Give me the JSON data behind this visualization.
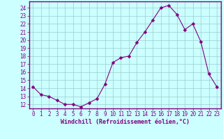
{
  "hours": [
    0,
    1,
    2,
    3,
    4,
    5,
    6,
    7,
    8,
    9,
    10,
    11,
    12,
    13,
    14,
    15,
    16,
    17,
    18,
    19,
    20,
    21,
    22,
    23
  ],
  "windchill": [
    14.2,
    13.2,
    13.0,
    12.5,
    12.0,
    12.0,
    11.7,
    12.2,
    12.7,
    14.5,
    17.2,
    17.8,
    18.0,
    19.7,
    21.0,
    22.5,
    24.0,
    24.3,
    23.2,
    21.3,
    22.0,
    19.8,
    15.8,
    14.2
  ],
  "line_color": "#800080",
  "marker_color": "#800080",
  "bg_color": "#ccffff",
  "plot_bg_color": "#ccffff",
  "grid_color": "#99cccc",
  "xlabel": "Windchill (Refroidissement éolien,°C)",
  "ylabel_ticks": [
    12,
    13,
    14,
    15,
    16,
    17,
    18,
    19,
    20,
    21,
    22,
    23,
    24
  ],
  "ylim": [
    11.5,
    24.8
  ],
  "xlim": [
    -0.5,
    23.5
  ],
  "xticks": [
    0,
    1,
    2,
    3,
    4,
    5,
    6,
    7,
    8,
    9,
    10,
    11,
    12,
    13,
    14,
    15,
    16,
    17,
    18,
    19,
    20,
    21,
    22,
    23
  ],
  "tick_fontsize": 5.5,
  "label_fontsize": 6.0,
  "marker_size": 2.5,
  "line_width": 0.8
}
